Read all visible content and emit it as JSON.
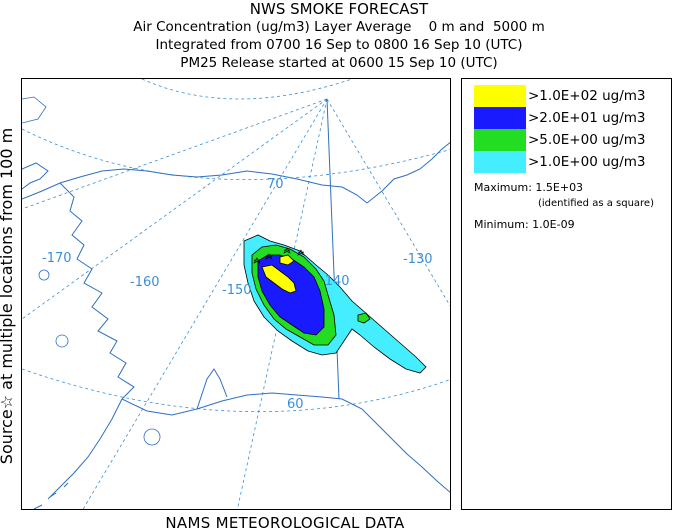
{
  "header": {
    "title": "NWS SMOKE FORECAST",
    "line1": "Air Concentration (ug/m3) Layer Average    0 m and  5000 m",
    "line2": "Integrated from 0700 16 Sep to 0800 16 Sep 10 (UTC)",
    "line3": "PM25 Release started at 0600 15 Sep 10 (UTC)"
  },
  "side_label": "Source☆ at multiple locations  from 100 m",
  "bottom_label": "NAMS METEOROLOGICAL DATA",
  "map": {
    "longitude_labels": [
      "-170",
      "-160",
      "-150",
      "-140",
      "-130"
    ],
    "latitude_labels": [
      "70",
      "60"
    ]
  },
  "legend": {
    "items": [
      {
        "label": ">1.0E+02 ug/m3",
        "color": "#ffff00"
      },
      {
        "label": ">2.0E+01 ug/m3",
        "color": "#1a1aff"
      },
      {
        "label": ">5.0E+00 ug/m3",
        "color": "#22dd22"
      },
      {
        "label": ">1.0E+00 ug/m3",
        "color": "#44eeff"
      }
    ],
    "maximum_label": "Maximum: 1.5E+03",
    "maximum_note": "(identified as a square)",
    "minimum_label": "Minimum: 1.0E-09"
  },
  "colors": {
    "coastline": "#2f6fc2",
    "graticule": "#3a8fd8"
  }
}
